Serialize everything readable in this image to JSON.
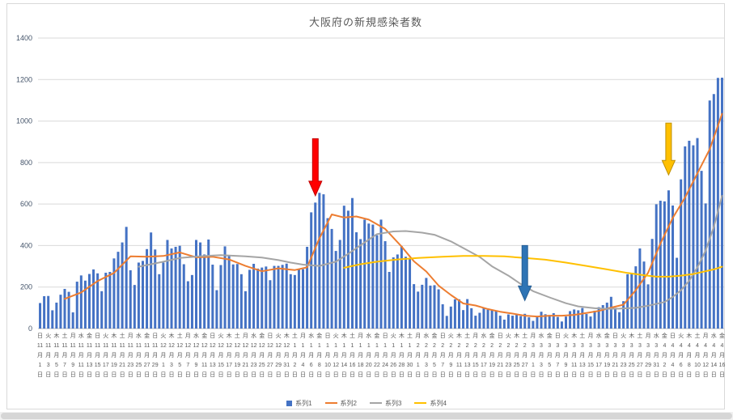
{
  "app": {
    "background": "#FFFFFF"
  },
  "chart_frame": {
    "border_color": "#D9D9D9"
  },
  "scrollbar": {
    "color": "#D6D6D6"
  },
  "chart_data": {
    "type": "bar",
    "combo": true,
    "title": "大阪府の新規感染者数",
    "title_color": "#595959",
    "ylim": [
      0,
      1400
    ],
    "y_step": 200,
    "y_ticks": [
      0,
      200,
      400,
      600,
      800,
      1000,
      1200,
      1400
    ],
    "grid": true,
    "gridline_color": "#D9D9D9",
    "axis_line_color": "#BFBFBF",
    "y_label_color": "#44546A",
    "x_label_color": "#595959",
    "legend_position": "bottom",
    "x_tick_interval_days": 2,
    "x_ticks": [
      [
        "日",
        11,
        1
      ],
      [
        "火",
        11,
        3
      ],
      [
        "木",
        11,
        5
      ],
      [
        "土",
        11,
        7
      ],
      [
        "月",
        11,
        9
      ],
      [
        "水",
        11,
        11
      ],
      [
        "金",
        11,
        13
      ],
      [
        "日",
        11,
        15
      ],
      [
        "火",
        11,
        17
      ],
      [
        "木",
        11,
        19
      ],
      [
        "土",
        11,
        21
      ],
      [
        "月",
        11,
        23
      ],
      [
        "水",
        11,
        25
      ],
      [
        "金",
        11,
        27
      ],
      [
        "日",
        11,
        29
      ],
      [
        "火",
        12,
        1
      ],
      [
        "木",
        12,
        3
      ],
      [
        "土",
        12,
        5
      ],
      [
        "月",
        12,
        7
      ],
      [
        "水",
        12,
        9
      ],
      [
        "金",
        12,
        11
      ],
      [
        "日",
        12,
        13
      ],
      [
        "火",
        12,
        15
      ],
      [
        "木",
        12,
        17
      ],
      [
        "土",
        12,
        19
      ],
      [
        "月",
        12,
        21
      ],
      [
        "水",
        12,
        23
      ],
      [
        "金",
        12,
        25
      ],
      [
        "日",
        12,
        27
      ],
      [
        "火",
        12,
        29
      ],
      [
        "木",
        12,
        31
      ],
      [
        "土",
        1,
        2
      ],
      [
        "月",
        1,
        4
      ],
      [
        "水",
        1,
        6
      ],
      [
        "金",
        1,
        8
      ],
      [
        "日",
        1,
        10
      ],
      [
        "火",
        1,
        12
      ],
      [
        "木",
        1,
        14
      ],
      [
        "土",
        1,
        16
      ],
      [
        "月",
        1,
        18
      ],
      [
        "水",
        1,
        20
      ],
      [
        "金",
        1,
        22
      ],
      [
        "日",
        1,
        24
      ],
      [
        "火",
        1,
        26
      ],
      [
        "木",
        1,
        28
      ],
      [
        "土",
        1,
        30
      ],
      [
        "月",
        2,
        1
      ],
      [
        "水",
        2,
        3
      ],
      [
        "金",
        2,
        5
      ],
      [
        "日",
        2,
        7
      ],
      [
        "火",
        2,
        9
      ],
      [
        "木",
        2,
        11
      ],
      [
        "土",
        2,
        13
      ],
      [
        "月",
        2,
        15
      ],
      [
        "水",
        2,
        17
      ],
      [
        "金",
        2,
        19
      ],
      [
        "日",
        2,
        21
      ],
      [
        "火",
        2,
        23
      ],
      [
        "木",
        2,
        25
      ],
      [
        "土",
        2,
        27
      ],
      [
        "月",
        3,
        1
      ],
      [
        "水",
        3,
        3
      ],
      [
        "金",
        3,
        5
      ],
      [
        "日",
        3,
        7
      ],
      [
        "火",
        3,
        9
      ],
      [
        "木",
        3,
        11
      ],
      [
        "土",
        3,
        13
      ],
      [
        "月",
        3,
        15
      ],
      [
        "水",
        3,
        17
      ],
      [
        "金",
        3,
        19
      ],
      [
        "日",
        3,
        21
      ],
      [
        "火",
        3,
        23
      ],
      [
        "木",
        3,
        25
      ],
      [
        "土",
        3,
        27
      ],
      [
        "月",
        3,
        29
      ],
      [
        "水",
        3,
        31
      ],
      [
        "金",
        4,
        2
      ],
      [
        "日",
        4,
        4
      ],
      [
        "火",
        4,
        6
      ],
      [
        "木",
        4,
        8
      ],
      [
        "土",
        4,
        10
      ],
      [
        "月",
        4,
        12
      ],
      [
        "水",
        4,
        14
      ],
      [
        "金",
        4,
        16
      ]
    ],
    "x_start_label": "11月1日(日)",
    "x_end_label": "4月16日(金)",
    "series": [
      {
        "name": "系列1",
        "type": "bar",
        "color": "#4472C4",
        "values": [
          123,
          156,
          157,
          88,
          125,
          163,
          191,
          177,
          78,
          226,
          256,
          231,
          263,
          285,
          266,
          180,
          269,
          273,
          338,
          370,
          415,
          490,
          281,
          210,
          318,
          326,
          383,
          463,
          381,
          262,
          318,
          427,
          386,
          394,
          399,
          310,
          228,
          258,
          427,
          415,
          357,
          429,
          308,
          185,
          306,
          396,
          351,
          309,
          311,
          262,
          180,
          283,
          312,
          289,
          294,
          299,
          233,
          302,
          302,
          307,
          313,
          262,
          258,
          286,
          286,
          394,
          560,
          607,
          654,
          647,
          532,
          480,
          374,
          427,
          592,
          568,
          629,
          464,
          431,
          525,
          506,
          501,
          450,
          525,
          421,
          273,
          343,
          357,
          397,
          346,
          338,
          214,
          178,
          211,
          244,
          207,
          209,
          189,
          117,
          61,
          106,
          141,
          141,
          89,
          142,
          98,
          62,
          76,
          99,
          91,
          91,
          86,
          62,
          43,
          68,
          62,
          67,
          60,
          71,
          54,
          37,
          57,
          81,
          69,
          65,
          74,
          56,
          34,
          58,
          84,
          92,
          88,
          99,
          70,
          58,
          86,
          103,
          113,
          125,
          153,
          100,
          79,
          132,
          262,
          266,
          300,
          386,
          323,
          213,
          432,
          599,
          616,
          613,
          666,
          593,
          341,
          719,
          878,
          905,
          883,
          918,
          760,
          603,
          1099,
          1130,
          1208,
          1209
        ]
      },
      {
        "name": "系列2",
        "type": "line",
        "color": "#ED7D31",
        "sampled_points": [
          [
            6,
            143
          ],
          [
            10,
            174
          ],
          [
            14,
            229
          ],
          [
            18,
            268
          ],
          [
            22,
            348
          ],
          [
            26,
            346
          ],
          [
            30,
            350
          ],
          [
            34,
            367
          ],
          [
            38,
            343
          ],
          [
            42,
            346
          ],
          [
            46,
            333
          ],
          [
            50,
            302
          ],
          [
            54,
            276
          ],
          [
            58,
            290
          ],
          [
            62,
            282
          ],
          [
            65,
            295
          ],
          [
            68,
            435
          ],
          [
            71,
            550
          ],
          [
            74,
            535
          ],
          [
            77,
            540
          ],
          [
            80,
            525
          ],
          [
            84,
            480
          ],
          [
            88,
            395
          ],
          [
            91,
            324
          ],
          [
            94,
            275
          ],
          [
            97,
            207
          ],
          [
            100,
            162
          ],
          [
            103,
            121
          ],
          [
            106,
            111
          ],
          [
            109,
            94
          ],
          [
            112,
            81
          ],
          [
            115,
            72
          ],
          [
            118,
            62
          ],
          [
            121,
            58
          ],
          [
            124,
            62
          ],
          [
            127,
            62
          ],
          [
            130,
            66
          ],
          [
            133,
            75
          ],
          [
            136,
            85
          ],
          [
            139,
            101
          ],
          [
            142,
            115
          ],
          [
            145,
            185
          ],
          [
            148,
            269
          ],
          [
            151,
            410
          ],
          [
            154,
            533
          ],
          [
            157,
            632
          ],
          [
            160,
            748
          ],
          [
            163,
            864
          ],
          [
            166,
            1035
          ]
        ]
      },
      {
        "name": "系列3",
        "type": "line",
        "color": "#A5A5A5",
        "sampled_points": [
          [
            24,
            298
          ],
          [
            30,
            322
          ],
          [
            34,
            340
          ],
          [
            40,
            350
          ],
          [
            44,
            354
          ],
          [
            50,
            348
          ],
          [
            54,
            342
          ],
          [
            58,
            330
          ],
          [
            61,
            318
          ],
          [
            64,
            308
          ],
          [
            68,
            302
          ],
          [
            72,
            322
          ],
          [
            75,
            360
          ],
          [
            79,
            415
          ],
          [
            82,
            455
          ],
          [
            86,
            468
          ],
          [
            89,
            470
          ],
          [
            93,
            462
          ],
          [
            96,
            452
          ],
          [
            100,
            420
          ],
          [
            103,
            388
          ],
          [
            107,
            345
          ],
          [
            110,
            300
          ],
          [
            114,
            255
          ],
          [
            117,
            215
          ],
          [
            120,
            180
          ],
          [
            124,
            150
          ],
          [
            128,
            122
          ],
          [
            131,
            107
          ],
          [
            135,
            98
          ],
          [
            138,
            95
          ],
          [
            141,
            96
          ],
          [
            145,
            100
          ],
          [
            148,
            110
          ],
          [
            152,
            128
          ],
          [
            154,
            152
          ],
          [
            156,
            185
          ],
          [
            158,
            230
          ],
          [
            160,
            295
          ],
          [
            162,
            375
          ],
          [
            164,
            490
          ],
          [
            166,
            640
          ]
        ]
      },
      {
        "name": "系列4",
        "type": "line",
        "color": "#FFC000",
        "sampled_points": [
          [
            74,
            293
          ],
          [
            78,
            310
          ],
          [
            82,
            322
          ],
          [
            87,
            333
          ],
          [
            92,
            340
          ],
          [
            98,
            346
          ],
          [
            103,
            350
          ],
          [
            108,
            350
          ],
          [
            113,
            348
          ],
          [
            118,
            340
          ],
          [
            123,
            332
          ],
          [
            128,
            318
          ],
          [
            133,
            302
          ],
          [
            138,
            285
          ],
          [
            143,
            268
          ],
          [
            147,
            257
          ],
          [
            150,
            250
          ],
          [
            153,
            250
          ],
          [
            156,
            255
          ],
          [
            159,
            263
          ],
          [
            161,
            272
          ],
          [
            164,
            285
          ],
          [
            166,
            298
          ]
        ]
      }
    ],
    "annotations": [
      {
        "name": "red-down-arrow",
        "shape": "block-arrow-down",
        "fill": "#FF0000",
        "stroke": "#C00000",
        "day_index": 67,
        "from_value": 915,
        "to_value": 640
      },
      {
        "name": "blue-down-arrow",
        "shape": "block-arrow-down",
        "fill": "#2E74B5",
        "stroke": "#255E94",
        "day_index": 118,
        "from_value": 400,
        "to_value": 135
      },
      {
        "name": "gold-down-arrow",
        "shape": "block-arrow-down",
        "fill": "#FFC000",
        "stroke": "#BF9000",
        "day_index": 153,
        "from_value": 990,
        "to_value": 740
      }
    ]
  }
}
